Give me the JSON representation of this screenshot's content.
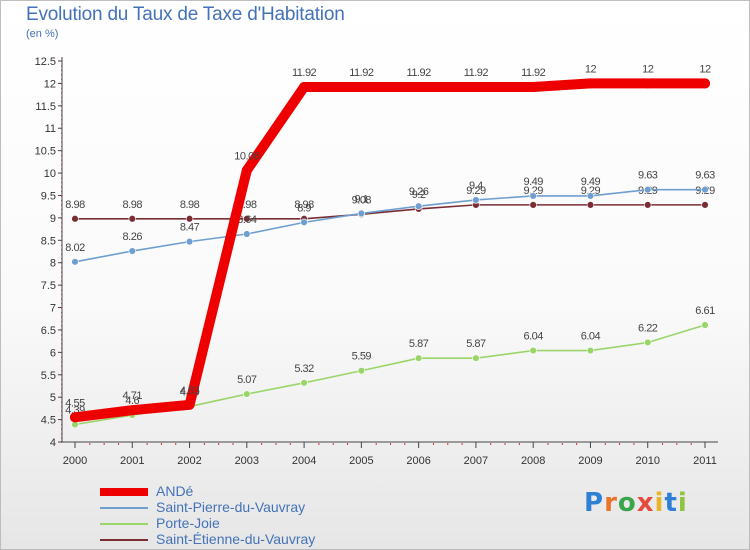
{
  "header": {
    "title": "Evolution du Taux de Taxe d'Habitation",
    "subtitle": "(en %)"
  },
  "brand": {
    "letters": [
      "P",
      "r",
      "o",
      "x",
      "i",
      "t",
      "i"
    ],
    "colors": [
      "#2e7fd6",
      "#e9742a",
      "#3aa64a",
      "#e44b3c",
      "#e8b42a",
      "#2e7fd6",
      "#8ec43f"
    ]
  },
  "chart_data": {
    "type": "line",
    "title": "Evolution du Taux de Taxe d'Habitation",
    "subtitle": "(en %)",
    "xlabel": "",
    "ylabel": "",
    "x": [
      "2000",
      "2001",
      "2002",
      "2003",
      "2004",
      "2005",
      "2006",
      "2007",
      "2008",
      "2009",
      "2010",
      "2011"
    ],
    "ylim": [
      4,
      12.5
    ],
    "yticks": [
      "4",
      "4.5",
      "5",
      "5.5",
      "6",
      "6.5",
      "7",
      "7.5",
      "8",
      "8.5",
      "9",
      "9.5",
      "10",
      "10.5",
      "11",
      "11.5",
      "12",
      "12.5"
    ],
    "grid": false,
    "legend_position": "bottom-left",
    "series": [
      {
        "name": "Saint-Étienne-du-Vauvray",
        "color": "#7a2e34",
        "values": [
          8.98,
          8.98,
          8.98,
          8.98,
          8.98,
          9.08,
          9.2,
          9.29,
          9.29,
          9.29,
          9.29,
          9.29
        ],
        "labels": [
          "8.98",
          "8.98",
          "8.98",
          "8.98",
          "8.98",
          "9.08",
          "9.2",
          "9.29",
          "9.29",
          "9.29",
          "9.29",
          "9.29"
        ]
      },
      {
        "name": "Porte-Joie",
        "color": "#9ad56a",
        "values": [
          4.39,
          4.6,
          4.79,
          5.07,
          5.32,
          5.59,
          5.87,
          5.87,
          6.04,
          6.04,
          6.22,
          6.61
        ],
        "labels": [
          "4.39",
          "4.6",
          "4.79",
          "5.07",
          "5.32",
          "5.59",
          "5.87",
          "5.87",
          "6.04",
          "6.04",
          "6.22",
          "6.61"
        ]
      },
      {
        "name": "Saint-Pierre-du-Vauvray",
        "color": "#6f9fd0",
        "values": [
          8.02,
          8.26,
          8.47,
          8.64,
          8.9,
          9.1,
          9.26,
          9.4,
          9.49,
          9.49,
          9.63,
          9.63
        ],
        "labels": [
          "8.02",
          "8.26",
          "8.47",
          "8.64",
          "8.9",
          "9.1",
          "9.26",
          "9.4",
          "9.49",
          "9.49",
          "9.63",
          "9.63"
        ]
      },
      {
        "name": "ANDé",
        "color": "#ee0000",
        "values": [
          4.55,
          4.71,
          4.83,
          10.06,
          11.92,
          11.92,
          11.92,
          11.92,
          11.92,
          12,
          12,
          12
        ],
        "labels": [
          "4.55",
          "4.71",
          "4.83",
          "10.06",
          "11.92",
          "11.92",
          "11.92",
          "11.92",
          "11.92",
          "12",
          "12",
          "12"
        ]
      }
    ]
  },
  "legend": {
    "entries": [
      "ANDé",
      "Saint-Pierre-du-Vauvray",
      "Porte-Joie",
      "Saint-Étienne-du-Vauvray"
    ],
    "colors": [
      "#ee0000",
      "#6f9fd0",
      "#9ad56a",
      "#7a2e34"
    ]
  }
}
